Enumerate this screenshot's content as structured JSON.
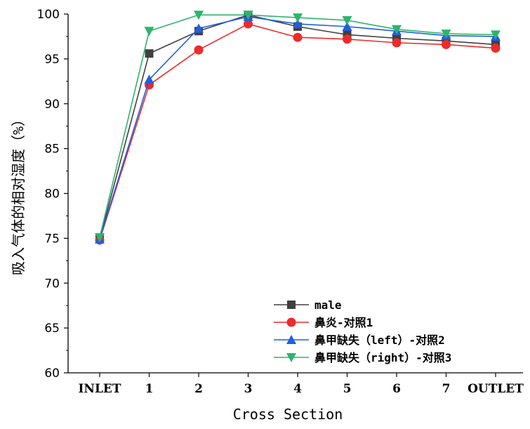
{
  "chart_data": {
    "type": "line",
    "title": "",
    "xlabel": "Cross Section",
    "ylabel": "吸入气体的相对湿度（%）",
    "categories": [
      "INLET",
      "1",
      "2",
      "3",
      "4",
      "5",
      "6",
      "7",
      "OUTLET"
    ],
    "ylim": [
      60,
      100
    ],
    "yticks": [
      60,
      65,
      70,
      75,
      80,
      85,
      90,
      95,
      100
    ],
    "grid": false,
    "legend_position": "bottom-right",
    "series": [
      {
        "name": "male",
        "color": "#404040",
        "marker": "square",
        "values": [
          74.9,
          95.6,
          98.1,
          99.9,
          98.6,
          97.7,
          97.3,
          97.0,
          96.6
        ]
      },
      {
        "name": "鼻炎-对照1",
        "color": "#ee2a2a",
        "marker": "circle",
        "values": [
          74.8,
          92.1,
          96.0,
          98.9,
          97.4,
          97.2,
          96.8,
          96.6,
          96.2
        ]
      },
      {
        "name": "鼻甲缺失（left）-对照2",
        "color": "#1f5fe0",
        "marker": "triangle-up",
        "values": [
          74.9,
          92.7,
          98.4,
          99.7,
          98.9,
          98.6,
          98.1,
          97.6,
          97.5
        ]
      },
      {
        "name": "鼻甲缺失（right）-对照3",
        "color": "#2db46b",
        "marker": "triangle-down",
        "values": [
          75.1,
          98.1,
          99.9,
          99.9,
          99.6,
          99.3,
          98.3,
          97.8,
          97.7
        ]
      }
    ]
  }
}
